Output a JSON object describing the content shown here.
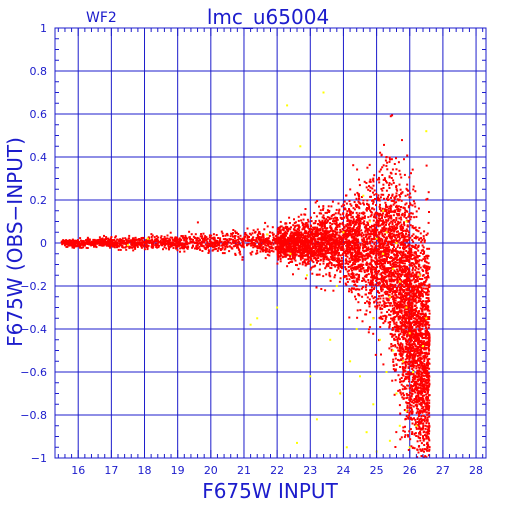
{
  "chart_data": {
    "type": "scatter",
    "title": "lmc_u65004",
    "subtitle": "WF2",
    "xlabel": "F675W INPUT",
    "ylabel": "F675W (OBS−INPUT)",
    "xlim": [
      15.3,
      28.3
    ],
    "ylim": [
      -1,
      1
    ],
    "x_ticks": [
      "16",
      "17",
      "18",
      "19",
      "20",
      "21",
      "22",
      "23",
      "24",
      "25",
      "26",
      "27",
      "28"
    ],
    "y_ticks": [
      "1",
      "0.8",
      "0.6",
      "0.4",
      "0.2",
      "0",
      "−0.2",
      "−0.4",
      "−0.6",
      "−0.8",
      "−1"
    ],
    "grid": true,
    "series": [
      {
        "color": "#ff0000",
        "envelope": {
          "x": [
            15.5,
            16,
            17,
            18,
            19,
            20,
            21,
            22,
            22.5,
            23,
            23.5,
            24,
            24.5,
            25,
            25.3,
            25.6,
            25.9,
            26.2,
            26.5
          ],
          "sigma": [
            0.008,
            0.009,
            0.011,
            0.013,
            0.016,
            0.02,
            0.026,
            0.035,
            0.043,
            0.055,
            0.07,
            0.09,
            0.12,
            0.16,
            0.19,
            0.22,
            0.24,
            0.26,
            0.28
          ],
          "bias": [
            0,
            0,
            0,
            0,
            0,
            0,
            0,
            0,
            0,
            0,
            0,
            0,
            -0.01,
            -0.03,
            -0.06,
            -0.12,
            -0.22,
            -0.38,
            -0.55
          ]
        }
      },
      {
        "color": "#ffff00",
        "points": [
          [
            22.3,
            0.64
          ],
          [
            23.4,
            0.7
          ],
          [
            22.7,
            0.45
          ],
          [
            26.5,
            0.52
          ],
          [
            25.0,
            0.02
          ],
          [
            25.2,
            -0.05
          ],
          [
            25.5,
            -0.12
          ],
          [
            25.7,
            -0.18
          ],
          [
            25.9,
            -0.3
          ],
          [
            26.0,
            -0.42
          ],
          [
            25.8,
            -0.55
          ],
          [
            26.1,
            -0.6
          ],
          [
            24.8,
            0.1
          ],
          [
            25.3,
            0.05
          ],
          [
            25.6,
            0.0
          ],
          [
            25.4,
            -0.25
          ],
          [
            24.9,
            -0.35
          ],
          [
            25.1,
            -0.45
          ],
          [
            24.2,
            -0.55
          ],
          [
            24.5,
            -0.62
          ],
          [
            25.6,
            -0.7
          ],
          [
            25.9,
            -0.78
          ],
          [
            26.2,
            -0.85
          ],
          [
            25.4,
            -0.92
          ],
          [
            24.7,
            -0.88
          ],
          [
            24.1,
            -0.95
          ],
          [
            25.0,
            -0.97
          ],
          [
            23.9,
            -0.7
          ],
          [
            23.6,
            -0.45
          ],
          [
            22.0,
            -0.3
          ],
          [
            21.4,
            -0.35
          ],
          [
            21.2,
            -0.38
          ],
          [
            22.6,
            -0.93
          ],
          [
            23.0,
            -0.62
          ],
          [
            24.6,
            0.22
          ],
          [
            25.2,
            0.15
          ],
          [
            25.9,
            0.1
          ],
          [
            26.3,
            -0.15
          ],
          [
            26.5,
            -0.35
          ],
          [
            25.3,
            -0.6
          ],
          [
            24.4,
            -0.4
          ],
          [
            23.8,
            -0.2
          ],
          [
            22.4,
            -0.05
          ],
          [
            21.7,
            0.04
          ],
          [
            18.1,
            0.02
          ],
          [
            17.5,
            -0.01
          ],
          [
            25.7,
            -0.85
          ],
          [
            26.0,
            -0.95
          ],
          [
            24.9,
            -0.75
          ],
          [
            25.5,
            -0.5
          ],
          [
            26.4,
            -0.48
          ],
          [
            23.2,
            -0.82
          ],
          [
            22.9,
            -0.15
          ],
          [
            24.0,
            0.05
          ]
        ]
      }
    ]
  }
}
